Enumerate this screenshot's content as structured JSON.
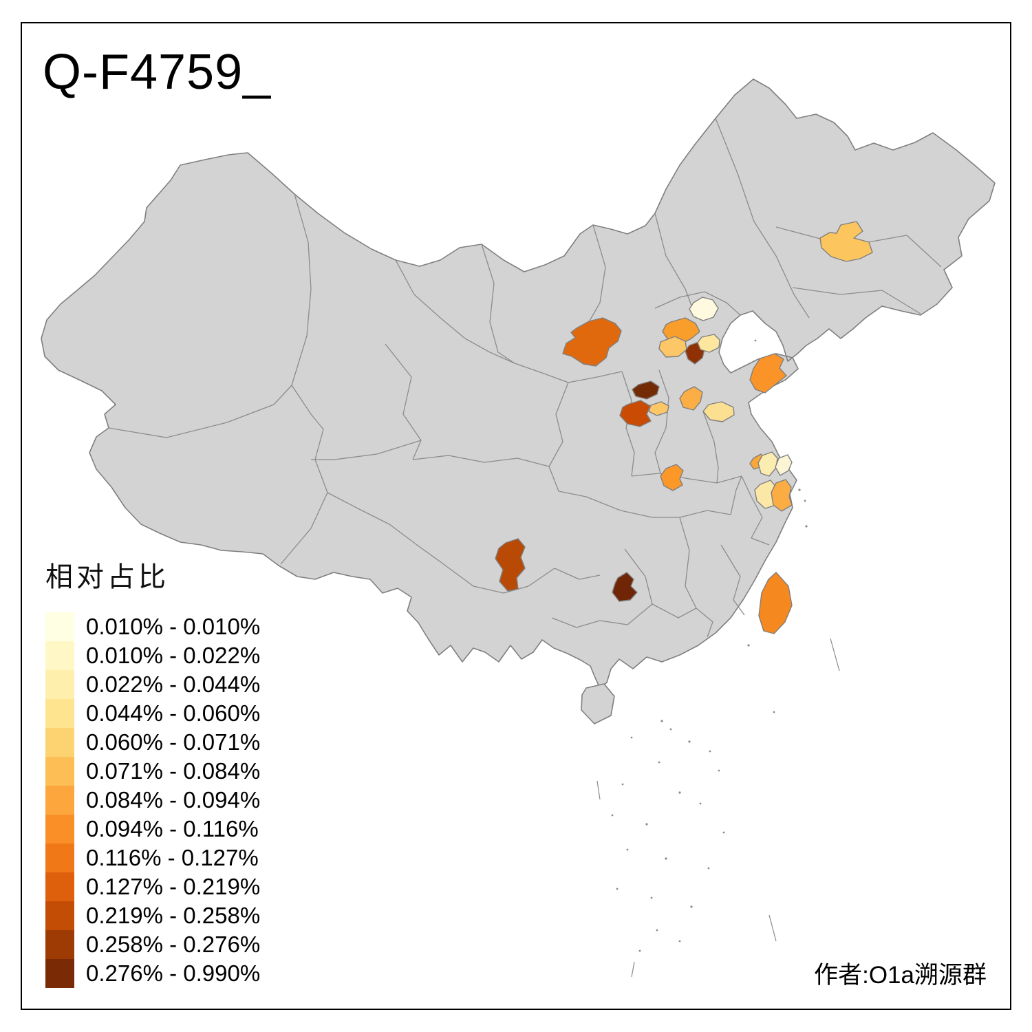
{
  "title": "Q-F4759_",
  "attribution": "作者:O1a溯源群",
  "legend": {
    "title": "相对占比",
    "items": [
      {
        "label": "0.010% - 0.010%",
        "color": "#FFFFE3"
      },
      {
        "label": "0.010% - 0.022%",
        "color": "#FFF8C6"
      },
      {
        "label": "0.022% - 0.044%",
        "color": "#FEF0AC"
      },
      {
        "label": "0.044% - 0.060%",
        "color": "#FEE48F"
      },
      {
        "label": "0.060% - 0.071%",
        "color": "#FDD271"
      },
      {
        "label": "0.071% - 0.084%",
        "color": "#FDBE56"
      },
      {
        "label": "0.084% - 0.094%",
        "color": "#FDA63E"
      },
      {
        "label": "0.094% - 0.116%",
        "color": "#FA8F28"
      },
      {
        "label": "0.116% - 0.127%",
        "color": "#F07817"
      },
      {
        "label": "0.127% - 0.219%",
        "color": "#DE600C"
      },
      {
        "label": "0.219% - 0.258%",
        "color": "#C34D04"
      },
      {
        "label": "0.258% - 0.276%",
        "color": "#9E3A04"
      },
      {
        "label": "0.276% - 0.990%",
        "color": "#7A2B05"
      }
    ]
  },
  "map": {
    "background": "#FFFFFF",
    "base_fill": "#D3D3D3",
    "border_color": "#7F7F7F",
    "inner_border_color": "#8C8C8C",
    "regions": [
      {
        "color": "#FDC55E",
        "range": "0.060% - 0.071%"
      },
      {
        "color": "#E0690E",
        "range": "0.116% - 0.127%"
      },
      {
        "color": "#FFF9E0",
        "range": "0.010% - 0.010%"
      },
      {
        "color": "#F99D2B",
        "range": "0.084% - 0.094%"
      },
      {
        "color": "#FDC768",
        "range": "0.060% - 0.071%"
      },
      {
        "color": "#8F3104",
        "range": "0.258% - 0.276%"
      },
      {
        "color": "#FDE79E",
        "range": "0.022% - 0.044%"
      },
      {
        "color": "#732B06",
        "range": "0.276% - 0.990%"
      },
      {
        "color": "#C94B04",
        "range": "0.219% - 0.258%"
      },
      {
        "color": "#FDC768",
        "range": "0.060% - 0.071%"
      },
      {
        "color": "#FBAE45",
        "range": "0.071% - 0.084%"
      },
      {
        "color": "#FCE092",
        "range": "0.044% - 0.060%"
      },
      {
        "color": "#FA9428",
        "range": "0.084% - 0.094%"
      },
      {
        "color": "#FB9828",
        "range": "0.084% - 0.094%"
      },
      {
        "color": "#F9A63A",
        "range": "0.084% - 0.094%"
      },
      {
        "color": "#FBECB0",
        "range": "0.022% - 0.044%"
      },
      {
        "color": "#FCF5D5",
        "range": "0.010% - 0.022%"
      },
      {
        "color": "#FCE8A6",
        "range": "0.022% - 0.044%"
      },
      {
        "color": "#FBAD43",
        "range": "0.084% - 0.094%"
      },
      {
        "color": "#B84A05",
        "range": "0.219% - 0.258%"
      },
      {
        "color": "#6F2506",
        "range": "0.276% - 0.990%"
      },
      {
        "color": "#F5881F",
        "range": "0.094% - 0.116%"
      }
    ]
  }
}
